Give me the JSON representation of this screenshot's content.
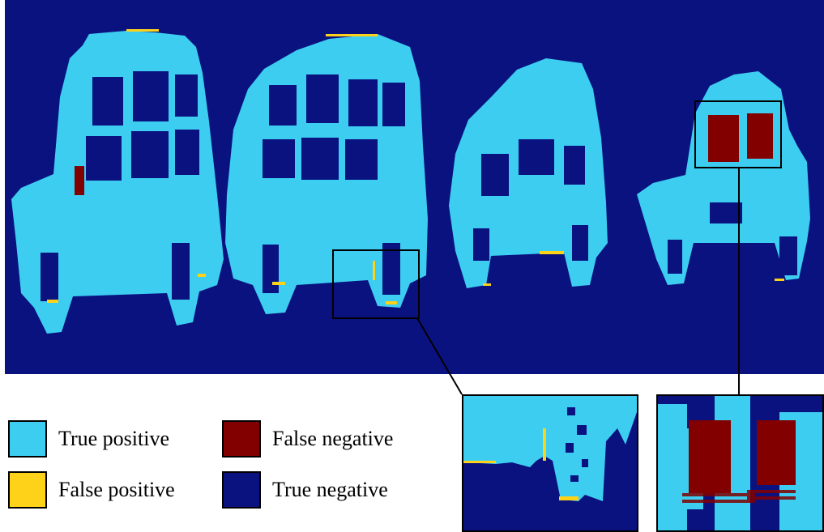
{
  "colors": {
    "true_positive": "#3ccdf0",
    "false_positive": "#ffd21a",
    "false_negative": "#820000",
    "true_negative": "#0a1280"
  },
  "legend": [
    {
      "label": "True positive",
      "color": "#3ccdf0"
    },
    {
      "label": "False positive",
      "color": "#ffd21a"
    },
    {
      "label": "False negative",
      "color": "#820000"
    },
    {
      "label": "True negative",
      "color": "#0a1280"
    }
  ]
}
